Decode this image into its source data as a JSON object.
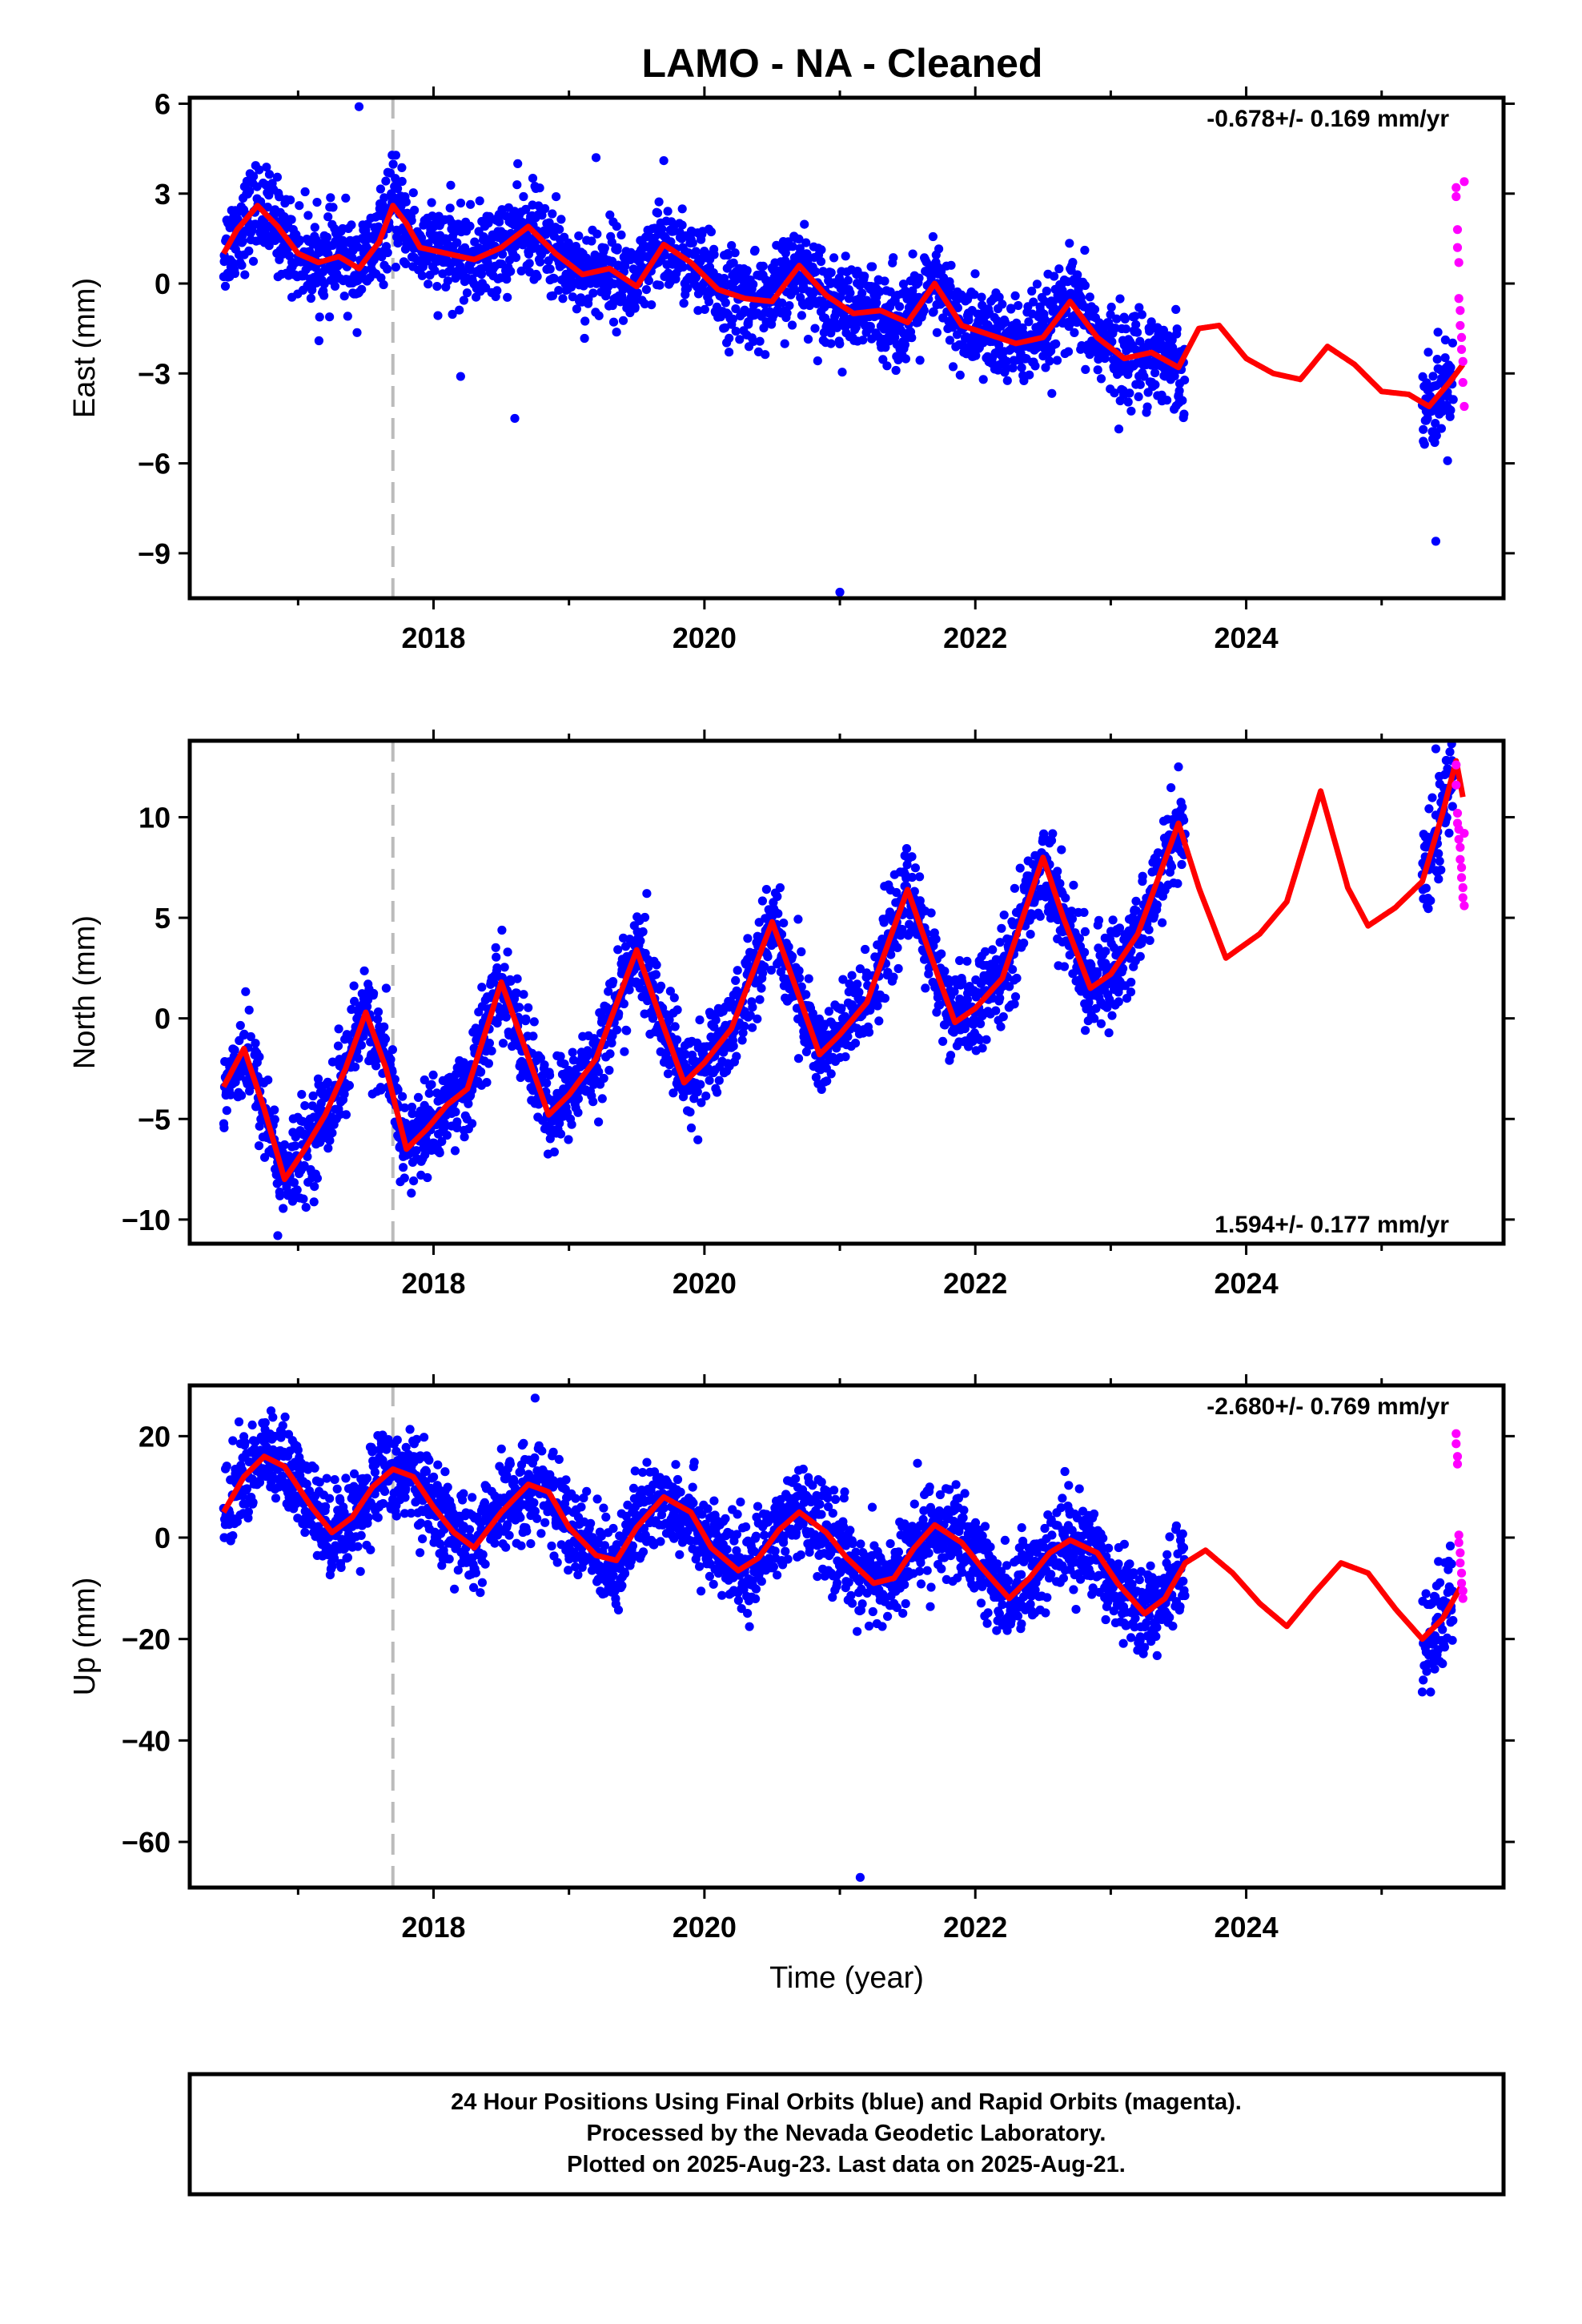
{
  "title": "LAMO  - NA - Cleaned",
  "colors": {
    "final_orbits": "#0000ff",
    "rapid_orbits": "#ff00ff",
    "model": "#ff0000",
    "event_line": "#bbbbbb",
    "frame": "#000000"
  },
  "footer": {
    "line1": "24 Hour Positions Using Final Orbits (blue) and Rapid Orbits (magenta).",
    "line2": "Processed by the Nevada Geodetic Laboratory.",
    "line3": "Plotted on 2025-Aug-23. Last data on 2025-Aug-21."
  },
  "chart_data": [
    {
      "type": "scatter",
      "component": "east",
      "ylabel": "East (mm)",
      "xlabel": "",
      "xlim": [
        2016.2,
        2025.9
      ],
      "ylim": [
        -10.5,
        6.2
      ],
      "xticks": [
        2018,
        2020,
        2022,
        2024
      ],
      "yticks": [
        6,
        3,
        0,
        -3,
        -6,
        -9
      ],
      "xminor": [
        2017,
        2019,
        2021,
        2023,
        2025
      ],
      "rate_label": "-0.678+/- 0.169 mm/yr",
      "rate_position": "top-right",
      "event_line_x": 2017.7,
      "data_span": [
        2016.45,
        2023.55
      ],
      "model_curve": {
        "x": [
          2016.45,
          2016.55,
          2016.7,
          2016.85,
          2017.0,
          2017.15,
          2017.3,
          2017.45,
          2017.6,
          2017.7,
          2017.8,
          2017.9,
          2018.1,
          2018.3,
          2018.5,
          2018.7,
          2018.9,
          2019.1,
          2019.3,
          2019.5,
          2019.7,
          2019.9,
          2020.1,
          2020.3,
          2020.5,
          2020.7,
          2020.9,
          2021.1,
          2021.3,
          2021.5,
          2021.7,
          2021.9,
          2022.1,
          2022.3,
          2022.5,
          2022.7,
          2022.9,
          2023.1,
          2023.3,
          2023.5,
          2023.65,
          2023.8,
          2024.0,
          2024.2,
          2024.4,
          2024.6,
          2024.8,
          2025.0,
          2025.2,
          2025.35,
          2025.5,
          2025.6
        ],
        "y": [
          1.0,
          1.8,
          2.6,
          1.9,
          1.0,
          0.7,
          0.9,
          0.5,
          1.4,
          2.6,
          2.0,
          1.2,
          1.0,
          0.8,
          1.2,
          1.9,
          1.0,
          0.3,
          0.5,
          -0.1,
          1.3,
          0.7,
          -0.2,
          -0.5,
          -0.6,
          0.6,
          -0.4,
          -1.0,
          -0.9,
          -1.3,
          0.0,
          -1.4,
          -1.7,
          -2.0,
          -1.8,
          -0.6,
          -1.8,
          -2.5,
          -2.3,
          -2.8,
          -1.5,
          -1.4,
          -2.5,
          -3.0,
          -3.2,
          -2.1,
          -2.7,
          -3.6,
          -3.7,
          -4.1,
          -3.3,
          -2.7
        ]
      },
      "final_orbit_points": {
        "outliers": [
          [
            2017.45,
            5.9
          ],
          [
            2021.0,
            -10.3
          ],
          [
            2018.6,
            -4.5
          ],
          [
            2019.2,
            4.2
          ],
          [
            2025.4,
            -8.6
          ],
          [
            2019.7,
            4.1
          ],
          [
            2018.2,
            -3.1
          ]
        ]
      },
      "rapid_orbit_points": {
        "x": [
          2025.55,
          2025.55,
          2025.56,
          2025.56,
          2025.57,
          2025.57,
          2025.58,
          2025.58,
          2025.59,
          2025.59,
          2025.6,
          2025.6,
          2025.61,
          2025.61
        ],
        "y": [
          3.2,
          2.9,
          1.8,
          1.2,
          0.7,
          -0.5,
          -0.9,
          -1.4,
          -1.8,
          -2.2,
          -2.6,
          -3.3,
          3.4,
          -4.1
        ]
      }
    },
    {
      "type": "scatter",
      "component": "north",
      "ylabel": "North (mm)",
      "xlabel": "",
      "xlim": [
        2016.2,
        2025.9
      ],
      "ylim": [
        -11.2,
        13.8
      ],
      "xticks": [
        2018,
        2020,
        2022,
        2024
      ],
      "yticks": [
        10,
        5,
        0,
        -5,
        -10
      ],
      "xminor": [
        2017,
        2019,
        2021,
        2023,
        2025
      ],
      "rate_label": "1.594+/- 0.177 mm/yr",
      "rate_position": "bottom-right",
      "event_line_x": 2017.7,
      "data_span": [
        2016.45,
        2023.55
      ],
      "model_curve": {
        "x": [
          2016.45,
          2016.6,
          2016.75,
          2016.9,
          2017.05,
          2017.2,
          2017.35,
          2017.5,
          2017.65,
          2017.8,
          2017.95,
          2018.1,
          2018.25,
          2018.5,
          2018.65,
          2018.85,
          2019.0,
          2019.2,
          2019.5,
          2019.65,
          2019.85,
          2020.0,
          2020.2,
          2020.5,
          2020.65,
          2020.85,
          2021.0,
          2021.2,
          2021.5,
          2021.65,
          2021.85,
          2022.0,
          2022.2,
          2022.5,
          2022.65,
          2022.85,
          2023.0,
          2023.2,
          2023.5,
          2023.65,
          2023.85,
          2024.1,
          2024.3,
          2024.55,
          2024.75,
          2024.9,
          2025.1,
          2025.3,
          2025.45,
          2025.55,
          2025.6
        ],
        "y": [
          -3.4,
          -1.5,
          -4.5,
          -8.0,
          -6.5,
          -4.8,
          -2.5,
          0.3,
          -2.5,
          -6.5,
          -5.5,
          -4.3,
          -3.5,
          1.8,
          -1.0,
          -4.8,
          -3.8,
          -2.0,
          3.4,
          0.5,
          -3.2,
          -2.2,
          -0.5,
          4.8,
          2.0,
          -1.8,
          -0.8,
          0.8,
          6.4,
          3.5,
          -0.2,
          0.5,
          2.0,
          8.0,
          5.0,
          1.5,
          2.2,
          4.2,
          9.7,
          6.5,
          3.0,
          4.2,
          5.8,
          11.3,
          6.5,
          4.6,
          5.5,
          6.8,
          10.2,
          12.8,
          11.0
        ]
      },
      "final_orbit_points": {
        "outliers": [
          [
            2016.85,
            -10.8
          ],
          [
            2023.5,
            12.5
          ],
          [
            2025.4,
            13.4
          ]
        ]
      },
      "rapid_orbit_points": {
        "x": [
          2025.55,
          2025.55,
          2025.56,
          2025.56,
          2025.57,
          2025.57,
          2025.58,
          2025.58,
          2025.59,
          2025.59,
          2025.6,
          2025.6,
          2025.61,
          2025.61
        ],
        "y": [
          12.6,
          11.6,
          10.2,
          9.7,
          9.4,
          8.9,
          8.5,
          7.9,
          7.5,
          7.0,
          6.5,
          6.0,
          5.6,
          9.2
        ]
      }
    },
    {
      "type": "scatter",
      "component": "up",
      "ylabel": "Up (mm)",
      "xlabel": "Time (year)",
      "xlim": [
        2016.2,
        2025.9
      ],
      "ylim": [
        -69,
        30
      ],
      "xticks": [
        2018,
        2020,
        2022,
        2024
      ],
      "yticks": [
        20,
        0,
        -20,
        -40,
        -60
      ],
      "xminor": [
        2017,
        2019,
        2021,
        2023,
        2025
      ],
      "rate_label": "-2.680+/- 0.769 mm/yr",
      "rate_position": "top-right",
      "event_line_x": 2017.7,
      "data_span": [
        2016.45,
        2023.55
      ],
      "model_curve": {
        "x": [
          2016.45,
          2016.6,
          2016.75,
          2016.9,
          2017.1,
          2017.25,
          2017.4,
          2017.55,
          2017.7,
          2017.85,
          2018.0,
          2018.15,
          2018.3,
          2018.5,
          2018.7,
          2018.85,
          2019.0,
          2019.2,
          2019.35,
          2019.5,
          2019.7,
          2019.9,
          2020.05,
          2020.25,
          2020.4,
          2020.55,
          2020.7,
          2020.9,
          2021.05,
          2021.25,
          2021.4,
          2021.55,
          2021.7,
          2021.9,
          2022.05,
          2022.25,
          2022.4,
          2022.55,
          2022.7,
          2022.9,
          2023.05,
          2023.25,
          2023.4,
          2023.55,
          2023.7,
          2023.9,
          2024.1,
          2024.3,
          2024.5,
          2024.7,
          2024.9,
          2025.1,
          2025.3,
          2025.45,
          2025.6
        ],
        "y": [
          5.0,
          12.0,
          16.0,
          14.0,
          6.0,
          1.0,
          4.0,
          10.0,
          13.5,
          12.0,
          6.0,
          1.0,
          -2.0,
          5.0,
          10.5,
          9.0,
          2.0,
          -3.5,
          -4.5,
          2.0,
          8.0,
          5.0,
          -2.0,
          -6.5,
          -4.0,
          1.5,
          5.0,
          1.0,
          -4.0,
          -9.0,
          -8.0,
          -2.0,
          2.5,
          -1.0,
          -6.0,
          -12.0,
          -8.0,
          -3.0,
          -0.5,
          -3.0,
          -9.0,
          -15.0,
          -12.0,
          -5.0,
          -2.5,
          -7.0,
          -13.0,
          -17.5,
          -11.0,
          -5.0,
          -7.0,
          -14.0,
          -20.0,
          -16.0,
          -9.0
        ]
      },
      "final_orbit_points": {
        "outliers": [
          [
            2021.15,
            -67.0
          ],
          [
            2018.75,
            27.5
          ],
          [
            2016.8,
            25.0
          ]
        ]
      },
      "rapid_orbit_points": {
        "x": [
          2025.55,
          2025.55,
          2025.56,
          2025.56,
          2025.57,
          2025.57,
          2025.58,
          2025.58,
          2025.59,
          2025.59,
          2025.6,
          2025.6
        ],
        "y": [
          20.5,
          18.5,
          16.0,
          14.5,
          0.5,
          -1.0,
          -3.0,
          -5.0,
          -7.0,
          -9.0,
          -10.5,
          -12.0
        ]
      }
    }
  ]
}
